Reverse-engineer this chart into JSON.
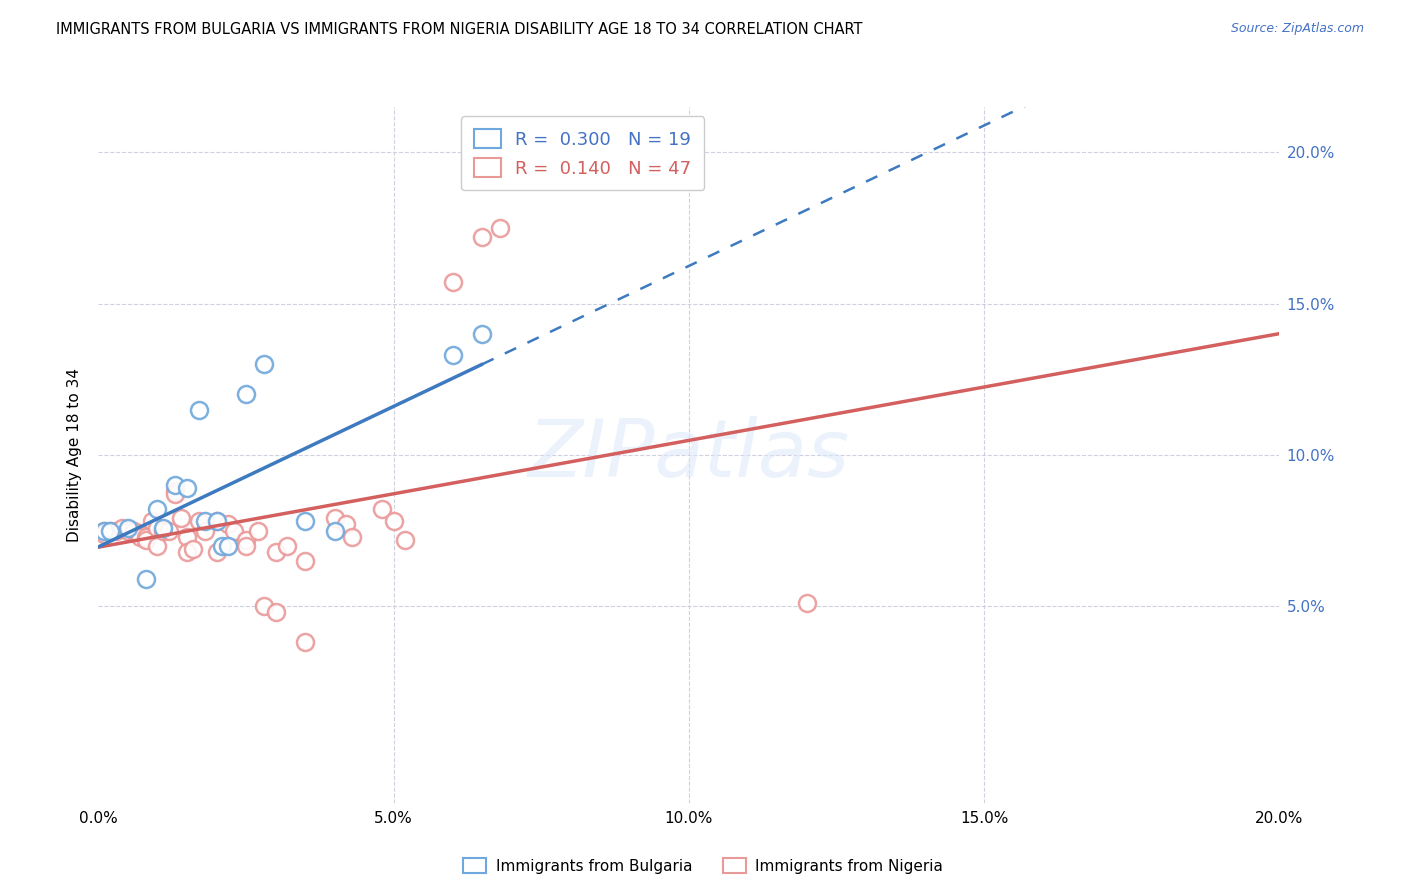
{
  "title": "IMMIGRANTS FROM BULGARIA VS IMMIGRANTS FROM NIGERIA DISABILITY AGE 18 TO 34 CORRELATION CHART",
  "source": "Source: ZipAtlas.com",
  "ylabel": "Disability Age 18 to 34",
  "xlim": [
    0.0,
    0.2
  ],
  "ylim": [
    -0.015,
    0.215
  ],
  "yticks": [
    0.05,
    0.1,
    0.15,
    0.2
  ],
  "xticks": [
    0.0,
    0.05,
    0.1,
    0.15,
    0.2
  ],
  "xtick_labels": [
    "0.0%",
    "5.0%",
    "10.0%",
    "15.0%",
    "20.0%"
  ],
  "ytick_labels": [
    "5.0%",
    "10.0%",
    "15.0%",
    "20.0%"
  ],
  "legend_r_bulgaria": "0.300",
  "legend_n_bulgaria": "19",
  "legend_r_nigeria": "0.140",
  "legend_n_nigeria": "47",
  "bulgaria_edge_color": "#6fa8dc",
  "nigeria_edge_color": "#ea9999",
  "bulgaria_line_color": "#3d7abf",
  "nigeria_line_color": "#d45f5f",
  "background_color": "#ffffff",
  "grid_color": "#d0d0e0",
  "bulgaria_scatter_x": [
    0.001,
    0.002,
    0.005,
    0.008,
    0.01,
    0.011,
    0.013,
    0.015,
    0.017,
    0.018,
    0.02,
    0.021,
    0.022,
    0.025,
    0.028,
    0.035,
    0.04,
    0.06,
    0.065
  ],
  "bulgaria_scatter_y": [
    0.075,
    0.075,
    0.076,
    0.059,
    0.082,
    0.076,
    0.09,
    0.089,
    0.115,
    0.078,
    0.078,
    0.07,
    0.07,
    0.12,
    0.13,
    0.078,
    0.075,
    0.133,
    0.14
  ],
  "nigeria_scatter_x": [
    0.001,
    0.001,
    0.002,
    0.003,
    0.004,
    0.005,
    0.006,
    0.007,
    0.007,
    0.008,
    0.008,
    0.009,
    0.01,
    0.01,
    0.011,
    0.012,
    0.013,
    0.013,
    0.014,
    0.015,
    0.015,
    0.016,
    0.017,
    0.018,
    0.02,
    0.02,
    0.022,
    0.023,
    0.025,
    0.025,
    0.027,
    0.028,
    0.03,
    0.03,
    0.032,
    0.035,
    0.035,
    0.04,
    0.042,
    0.043,
    0.048,
    0.05,
    0.052,
    0.06,
    0.065,
    0.068,
    0.12
  ],
  "nigeria_scatter_y": [
    0.075,
    0.074,
    0.075,
    0.075,
    0.076,
    0.075,
    0.075,
    0.074,
    0.073,
    0.073,
    0.072,
    0.078,
    0.076,
    0.07,
    0.075,
    0.075,
    0.088,
    0.087,
    0.079,
    0.073,
    0.068,
    0.069,
    0.078,
    0.075,
    0.078,
    0.068,
    0.077,
    0.075,
    0.072,
    0.07,
    0.075,
    0.05,
    0.068,
    0.048,
    0.07,
    0.065,
    0.038,
    0.079,
    0.077,
    0.073,
    0.082,
    0.078,
    0.072,
    0.157,
    0.172,
    0.175,
    0.051
  ]
}
